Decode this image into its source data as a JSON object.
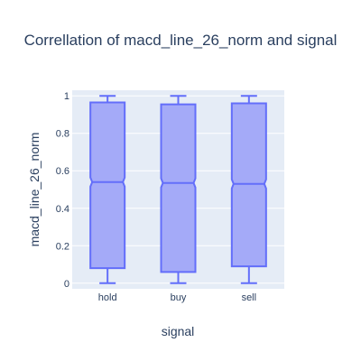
{
  "chart_data": {
    "type": "box",
    "title": "Correllation of macd_line_26_norm and signal",
    "xlabel": "signal",
    "ylabel": "macd_line_26_norm",
    "categories": [
      "hold",
      "buy",
      "sell"
    ],
    "ylim": [
      -0.03,
      1.03
    ],
    "yticks": [
      0,
      0.2,
      0.4,
      0.6,
      0.8,
      1
    ],
    "ytick_labels": [
      "0",
      "0.2",
      "0.4",
      "0.6",
      "0.8",
      "1"
    ],
    "grid": true,
    "notched": true,
    "boxes": [
      {
        "category": "hold",
        "min": 0.0,
        "q1": 0.08,
        "median": 0.54,
        "q3": 0.965,
        "max": 1.0
      },
      {
        "category": "buy",
        "min": 0.0,
        "q1": 0.06,
        "median": 0.535,
        "q3": 0.955,
        "max": 1.0
      },
      {
        "category": "sell",
        "min": 0.0,
        "q1": 0.09,
        "median": 0.53,
        "q3": 0.96,
        "max": 1.0
      }
    ],
    "colors": {
      "box_fill": "#a4aaf8",
      "box_line": "#636efa",
      "plot_bg": "#e5ecf6",
      "grid": "#ffffff",
      "text": "#2a3f5f"
    }
  }
}
